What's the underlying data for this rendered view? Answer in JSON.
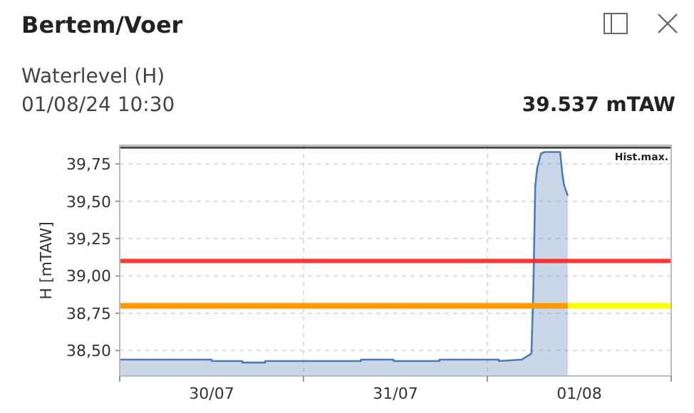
{
  "chart_data": {
    "type": "area",
    "title": "Bertem/Voer",
    "subtitle": "Waterlevel (H)",
    "annotations": [
      "01/08/24 10:30",
      "39.537 mTAW"
    ],
    "ylabel": "H [mTAW]",
    "xlim": [
      "--07-30T00:00",
      "--08-02T00:00"
    ],
    "xticks": [
      {
        "value": "--07-30T00:00",
        "label": null
      },
      {
        "value": "--07-30T12:00",
        "label": "30/07"
      },
      {
        "value": "--07-31T00:00",
        "label": null
      },
      {
        "value": "--07-31T12:00",
        "label": "31/07"
      },
      {
        "value": "--08-01T00:00",
        "label": null
      },
      {
        "value": "--08-01T12:00",
        "label": "01/08"
      },
      {
        "value": "--08-02T00:00",
        "label": null
      }
    ],
    "ylim": [
      38.33,
      39.875
    ],
    "yticks": [
      {
        "value": 38.5,
        "label": "38,50"
      },
      {
        "value": 38.75,
        "label": "38,75"
      },
      {
        "value": 39,
        "label": "39,00"
      },
      {
        "value": 39.25,
        "label": "39,25"
      },
      {
        "value": 39.5,
        "label": "39,50"
      },
      {
        "value": 39.75,
        "label": "39,75"
      }
    ],
    "grid": true,
    "series": [
      {
        "color": "#4f7bb5",
        "x": [
          "--07-30T00:00",
          "--07-30T12:00",
          "--07-30T12:00",
          "--07-30T16:00",
          "--07-30T16:00",
          "--07-30T19:00",
          "--07-30T19:00",
          "--07-31T07:30",
          "--07-31T07:30",
          "--07-31T11:45",
          "--07-31T11:45",
          "--07-31T17:45",
          "--07-31T17:45",
          "--08-01T01:30",
          "--08-01T01:30",
          "--08-01T04:30",
          "--08-01T05:45",
          "--08-01T06:00",
          "--08-01T06:15",
          "--08-01T06:30",
          "--08-01T07:00",
          "--08-01T07:30",
          "--08-01T09:30",
          "--08-01T09:45",
          "--08-01T10:00",
          "--08-01T10:30"
        ],
        "values": [
          38.44,
          38.44,
          38.43,
          38.43,
          38.42,
          38.42,
          38.43,
          38.43,
          38.44,
          38.44,
          38.43,
          38.43,
          38.44,
          38.44,
          38.43,
          38.44,
          38.48,
          38.9,
          39.6,
          39.72,
          39.82,
          39.83,
          39.83,
          39.7,
          39.61,
          39.537
        ]
      },
      {
        "type": "line",
        "color": "#ff9900",
        "x": [
          "--07-30T00:00",
          "--08-01T10:30"
        ],
        "values": [
          38.8,
          38.8
        ]
      },
      {
        "type": "line",
        "color": "#ffff00",
        "x": [
          "--08-01T10:30",
          "--08-02T00:00"
        ],
        "values": [
          38.8,
          38.8
        ]
      }
    ],
    "ref_lines": [
      {
        "axis": "y",
        "value": 39.1,
        "label": null,
        "color": "#ff2020"
      },
      {
        "axis": "y",
        "value": 39.86,
        "label": "Hist.max.",
        "color": "#333333"
      }
    ]
  }
}
